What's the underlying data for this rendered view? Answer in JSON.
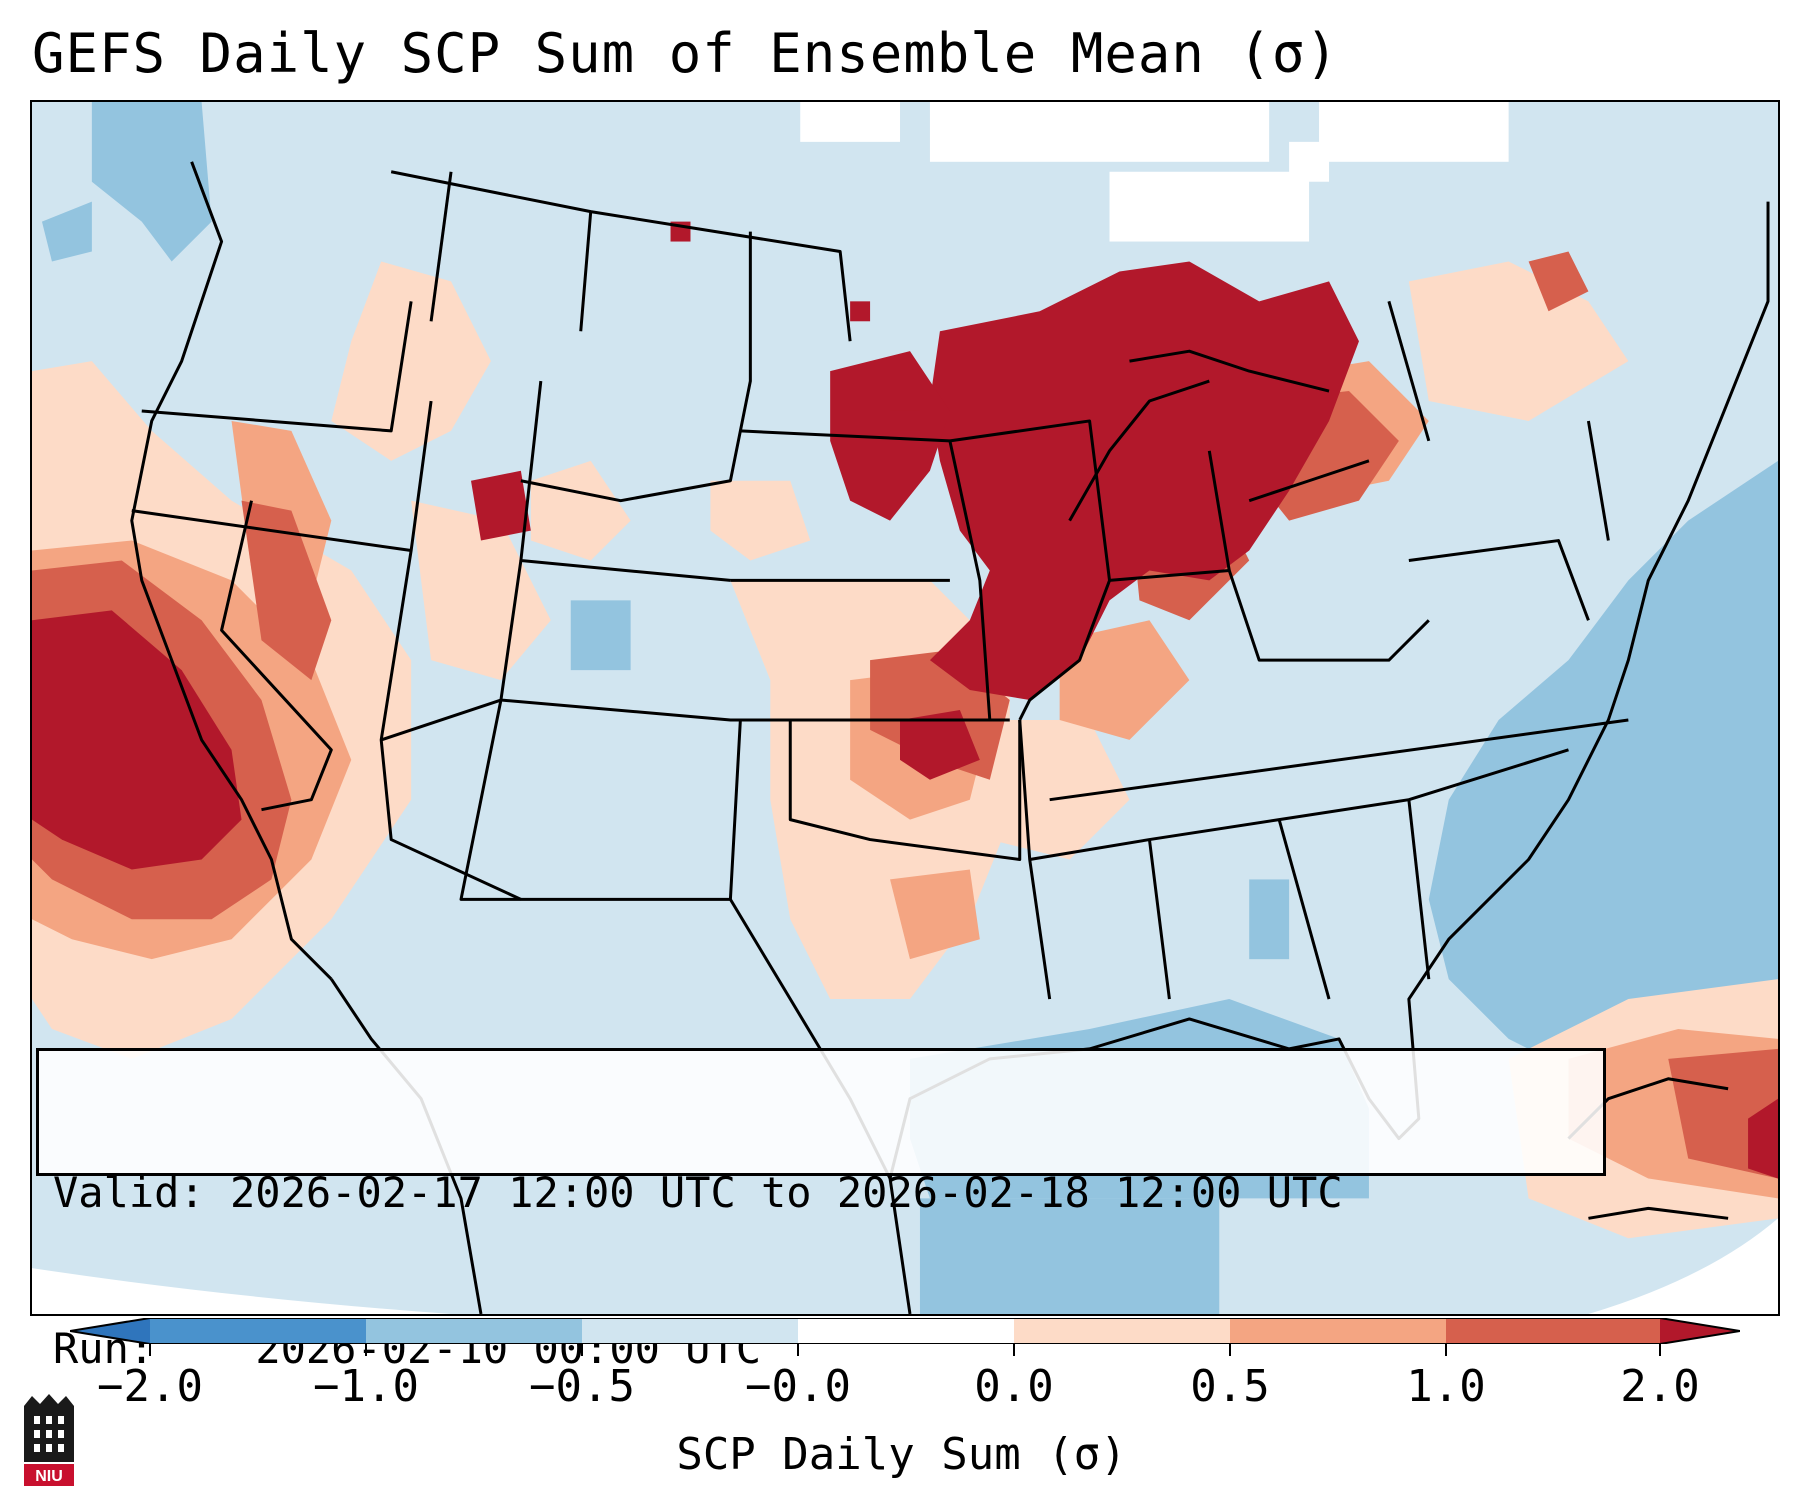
{
  "title": "GEFS Daily SCP Sum of Ensemble Mean (σ)",
  "valid_box": {
    "valid_label": "Valid:",
    "valid_range": "2026-02-17 12:00 UTC to 2026-02-18 12:00 UTC",
    "run_label": "Run:",
    "run_time": "2026-02-10 00:00 UTC"
  },
  "colorbar": {
    "ticks": [
      "−2.0",
      "−1.0",
      "−0.5",
      "−0.0",
      "0.0",
      "0.5",
      "1.0",
      "2.0"
    ],
    "label": "SCP Daily Sum (σ)",
    "colors": [
      "#2f75bc",
      "#4a92cc",
      "#93c4df",
      "#d1e5f0",
      "#fddbc7",
      "#f4a582",
      "#d6604d",
      "#b2182b"
    ]
  },
  "map": {
    "background": "#d1e5f0",
    "ocean_shade": "#93c4df",
    "region_colors": {
      "strong_positive": "#b2182b",
      "positive": "#d6604d",
      "weak_positive": "#f4a582",
      "slight_positive": "#fddbc7",
      "slight_negative": "#d1e5f0",
      "weak_negative": "#93c4df"
    }
  },
  "logo": {
    "text": "NIU",
    "icon": "niu-logo-icon"
  }
}
